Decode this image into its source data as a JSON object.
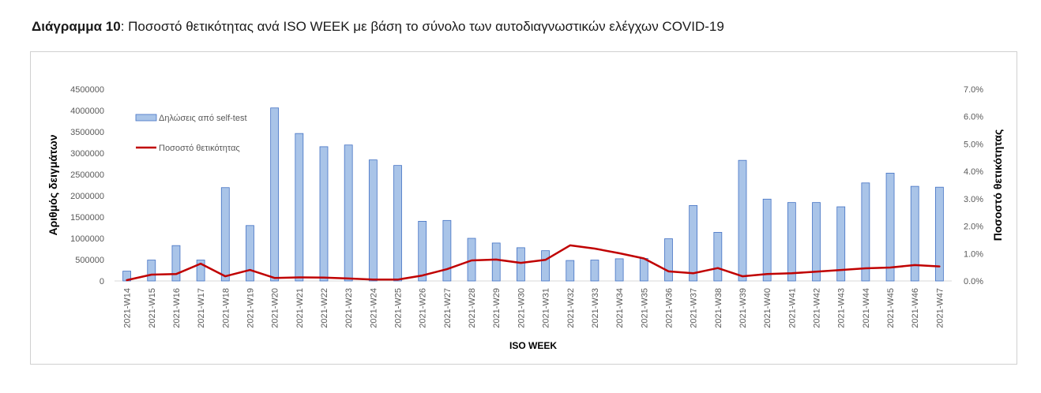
{
  "caption": {
    "prefix": "Διάγραμμα 10",
    "text": ": Ποσοστό θετικότητας ανά ISO WEEK με βάση το σύνολο των αυτοδιαγνωστικών ελέγχων COVID-19"
  },
  "chart_data": {
    "type": "bar",
    "title": "",
    "xlabel": "ISO WEEK",
    "ylabel": "Αριθμός δειγμάτων",
    "y2label": "Ποσοστό θετικότητας",
    "ylim": [
      0,
      4500000
    ],
    "y2lim": [
      0,
      0.07
    ],
    "yticks": [
      "0",
      "500000",
      "1000000",
      "1500000",
      "2000000",
      "2500000",
      "3000000",
      "3500000",
      "4000000",
      "4500000"
    ],
    "y2ticks": [
      "0.0%",
      "1.0%",
      "2.0%",
      "3.0%",
      "4.0%",
      "5.0%",
      "6.0%",
      "7.0%"
    ],
    "grid": false,
    "legend_position": "top-left",
    "categories": [
      "2021-W14",
      "2021-W15",
      "2021-W16",
      "2021-W17",
      "2021-W18",
      "2021-W19",
      "2021-W20",
      "2021-W21",
      "2021-W22",
      "2021-W23",
      "2021-W24",
      "2021-W25",
      "2021-W26",
      "2021-W27",
      "2021-W28",
      "2021-W29",
      "2021-W30",
      "2021-W31",
      "2021-W32",
      "2021-W33",
      "2021-W34",
      "2021-W35",
      "2021-W36",
      "2021-W37",
      "2021-W38",
      "2021-W39",
      "2021-W40",
      "2021-W41",
      "2021-W42",
      "2021-W43",
      "2021-W44",
      "2021-W45",
      "2021-W46",
      "2021-W47"
    ],
    "series": [
      {
        "name": "Δηλώσεις από self-test",
        "type": "bar",
        "axis": "left",
        "color": "#a9c4e8",
        "border": "#4472c4",
        "values": [
          230000,
          490000,
          830000,
          490000,
          2190000,
          1300000,
          4060000,
          3460000,
          3150000,
          3190000,
          2840000,
          2710000,
          1400000,
          1420000,
          1000000,
          890000,
          780000,
          710000,
          480000,
          490000,
          520000,
          530000,
          990000,
          1770000,
          1140000,
          2830000,
          1920000,
          1840000,
          1840000,
          1740000,
          2300000,
          2530000,
          2220000,
          2200000
        ]
      },
      {
        "name": "Ποσοστό θετικότητας",
        "type": "line",
        "axis": "right",
        "color": "#c00000",
        "values": [
          0.0003,
          0.0023,
          0.0025,
          0.0063,
          0.0017,
          0.004,
          0.0011,
          0.0013,
          0.0012,
          0.0009,
          0.0005,
          0.0005,
          0.002,
          0.0043,
          0.0075,
          0.0078,
          0.0066,
          0.0077,
          0.013,
          0.0118,
          0.0101,
          0.0082,
          0.0035,
          0.0028,
          0.0047,
          0.0017,
          0.0025,
          0.0028,
          0.0034,
          0.004,
          0.0046,
          0.0049,
          0.0058,
          0.0053
        ]
      }
    ]
  }
}
